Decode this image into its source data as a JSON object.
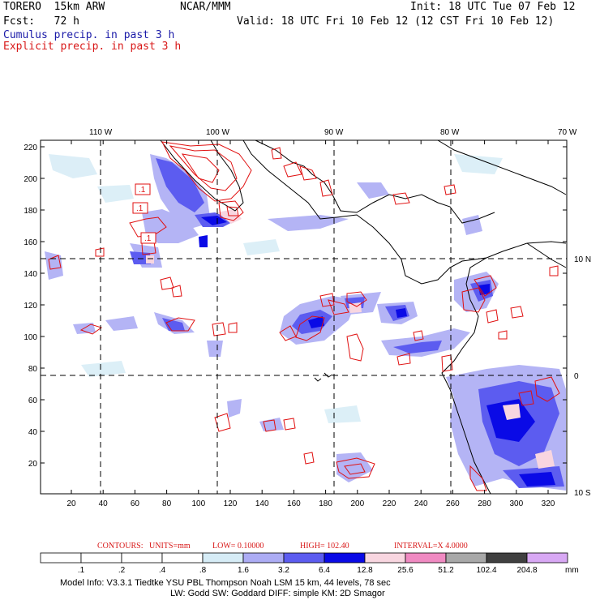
{
  "header": {
    "model": "TORERO  15km ARW",
    "org": "NCAR/MMM",
    "init": "Init: 18 UTC Tue 07 Feb 12",
    "fcst": "Fcst:   72 h",
    "valid": "Valid: 18 UTC Fri 10 Feb 12 (12 CST Fri 10 Feb 12)",
    "field1": "Cumulus precip. in past 3 h",
    "field2": "Explicit precip. in past 3 h"
  },
  "axes": {
    "top_lon_labels": [
      "110 W",
      "100 W",
      "90 W",
      "80 W",
      "70 W"
    ],
    "right_lat_labels": [
      "10 N",
      "0",
      "10 S"
    ],
    "y_ticks": [
      "220",
      "200",
      "180",
      "160",
      "140",
      "120",
      "100",
      "80",
      "60",
      "40",
      "20"
    ],
    "x_ticks": [
      "20",
      "40",
      "60",
      "80",
      "100",
      "120",
      "140",
      "160",
      "180",
      "200",
      "220",
      "240",
      "260",
      "280",
      "300",
      "320"
    ],
    "contour_labels": [
      ".1",
      ".1",
      ".1"
    ]
  },
  "contour_info": {
    "label": "CONTOURS:",
    "units": "UNITS=mm",
    "low": "LOW= 0.10000",
    "high": "HIGH=  102.40",
    "interval": "INTERVAL=X  4.0000"
  },
  "colorbar": {
    "levels": [
      ".1",
      ".2",
      ".4",
      ".8",
      "1.6",
      "3.2",
      "6.4",
      "12.8",
      "25.6",
      "51.2",
      "102.4",
      "204.8"
    ],
    "unit": "mm",
    "colors": [
      "#ffffff",
      "#ffffff",
      "#ffffff",
      "#ffffff",
      "#d6ecf6",
      "#acacf4",
      "#5c5cf0",
      "#0a0ae6",
      "#f8d6e0",
      "#f08ac2",
      "#a8a8a8",
      "#404040",
      "#d8a8f4"
    ]
  },
  "footer": {
    "line1": "Model Info: V3.3.1    Tiedtke YSU PBL  Thompson    Noah LSM  15 km,   44 levels,   78 sec",
    "line2": "LW: Godd SW: Goddard DIFF: simple KM: 2D Smagor"
  }
}
